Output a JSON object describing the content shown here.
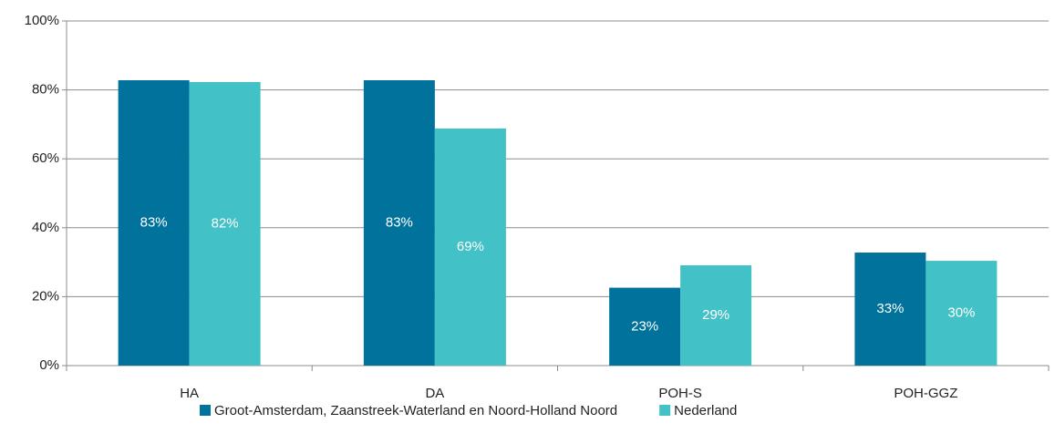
{
  "chart_data": {
    "type": "bar",
    "categories": [
      "HA",
      "DA",
      "POH-S",
      "POH-GGZ"
    ],
    "series": [
      {
        "name": "Groot-Amsterdam, Zaanstreek-Waterland en Noord-Holland Noord",
        "color": "#00729c",
        "values": [
          82.8,
          82.8,
          22.6,
          32.8
        ],
        "value_labels": [
          "83%",
          "83%",
          "23%",
          "33%"
        ]
      },
      {
        "name": "Nederland",
        "color": "#42c1c6",
        "values": [
          82.3,
          68.8,
          29.1,
          30.4
        ],
        "value_labels": [
          "82%",
          "69%",
          "29%",
          "30%"
        ]
      }
    ],
    "ylim": [
      0,
      100
    ],
    "yticks": [
      {
        "value": 0,
        "label": "0%"
      },
      {
        "value": 20,
        "label": "20%"
      },
      {
        "value": 40,
        "label": "40%"
      },
      {
        "value": 60,
        "label": "60%"
      },
      {
        "value": 80,
        "label": "80%"
      },
      {
        "value": 100,
        "label": "100%"
      }
    ],
    "grid": true,
    "legend": "bottom"
  }
}
